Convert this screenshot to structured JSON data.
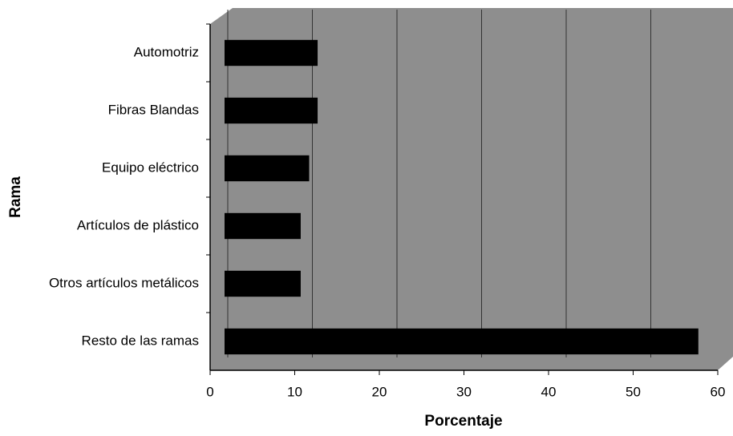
{
  "chart_data": {
    "type": "bar",
    "orientation": "horizontal",
    "x_label": "Porcentaje",
    "y_label": "Rama",
    "categories": [
      "Automotriz",
      "Fibras Blandas",
      "Equipo eléctrico",
      "Artículos de plástico",
      "Otros artículos metálicos",
      "Resto de las ramas"
    ],
    "values": [
      11,
      11,
      10,
      9,
      9,
      56
    ],
    "color": "#000000",
    "xlim": [
      0,
      60
    ],
    "xticks": [
      0,
      10,
      20,
      30,
      40,
      50,
      60
    ],
    "grid": true
  }
}
